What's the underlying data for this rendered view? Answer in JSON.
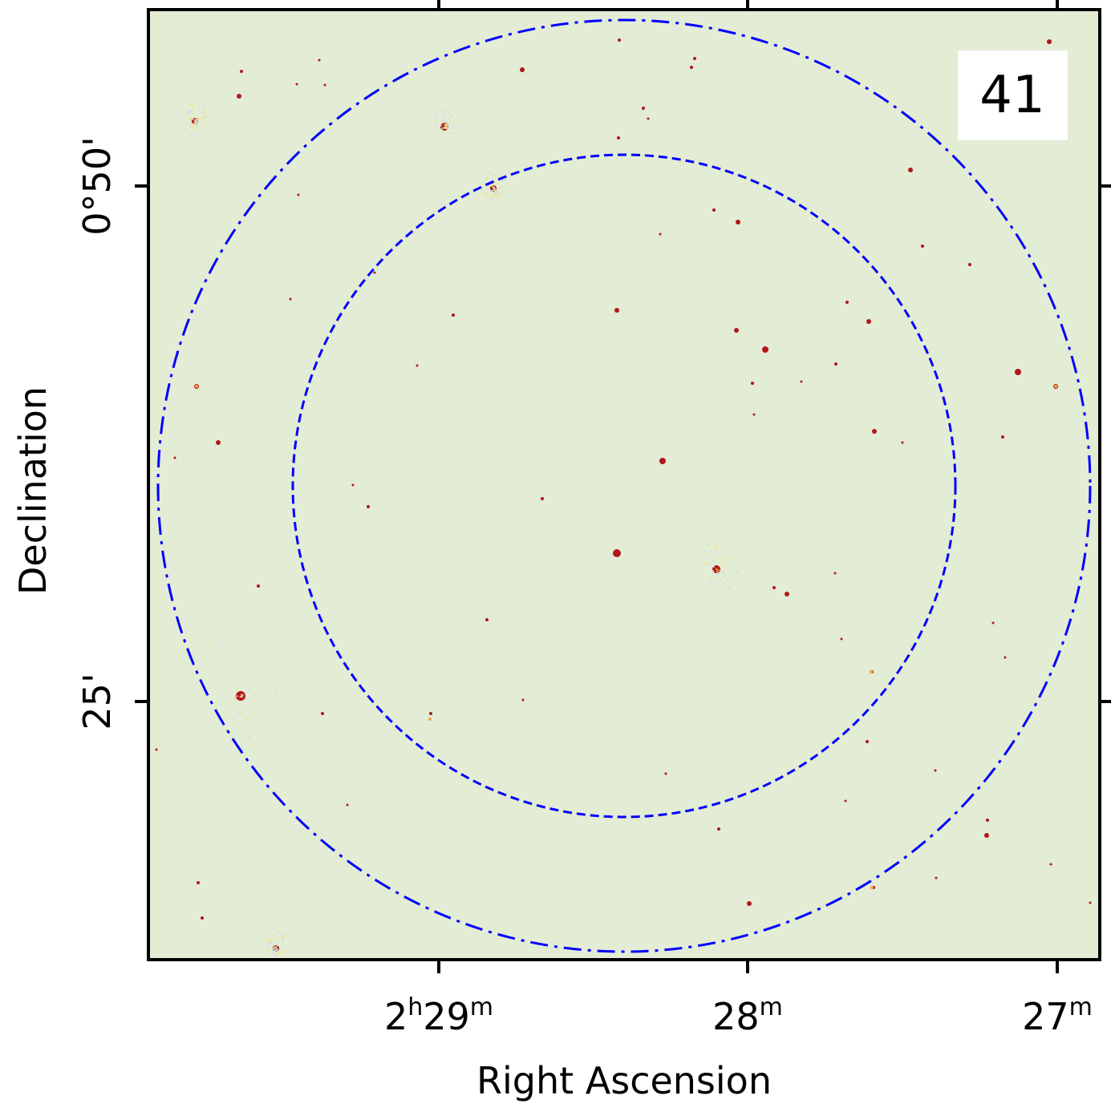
{
  "panel_label": "41",
  "axes": {
    "xlabel": "Right Ascension",
    "ylabel": "Declination",
    "x_ticks": [
      {
        "main": "2",
        "unit1": "h",
        "num2": "29",
        "unit2": "m"
      },
      {
        "main": "28",
        "unit1": "m"
      },
      {
        "main": "27",
        "unit1": "m"
      }
    ],
    "y_ticks": [
      "0°50'",
      "25'"
    ]
  },
  "image": {
    "background_color": "#e3ecd4",
    "source_color": "#b2161b",
    "artifact_colors": [
      "#f6e27a",
      "#c6dff0",
      "#f4a44a"
    ],
    "frame_color": "#000000"
  },
  "overlays": {
    "outer_circle_style": "dash-dot",
    "inner_circle_style": "dashed",
    "color": "#0000ff"
  }
}
